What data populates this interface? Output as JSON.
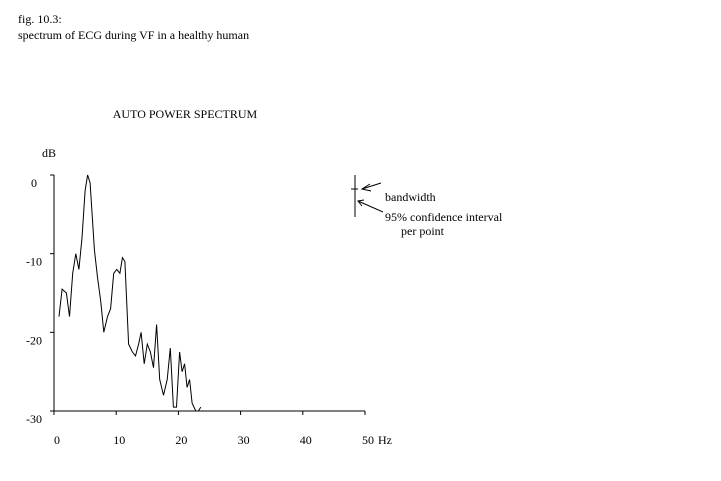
{
  "figure": {
    "label": "fig. 10.3:",
    "caption": "spectrum of ECG during VF in a healthy human"
  },
  "chart_data": {
    "type": "line",
    "title": "AUTO POWER SPECTRUM",
    "xlabel": "",
    "ylabel": "dB",
    "x_unit": "Hz",
    "xlim": [
      0,
      50
    ],
    "ylim": [
      -30,
      0
    ],
    "x_ticks": [
      0,
      10,
      20,
      30,
      40,
      50
    ],
    "x_tick_labels": [
      "0",
      "10",
      "20",
      "30",
      "40",
      "50"
    ],
    "y_ticks": [
      0,
      -10,
      -20,
      -30
    ],
    "y_tick_labels": [
      "0",
      "-10",
      "-20",
      "-30"
    ],
    "grid": false,
    "legend": "none",
    "color": "#000000",
    "series": [
      {
        "x": [
          0.8,
          1.3,
          2.0,
          2.5,
          3.0,
          3.5,
          4.0,
          4.5,
          5.0,
          5.4,
          5.8,
          6.5,
          7.0,
          7.5,
          8.0,
          8.6,
          9.1,
          9.6,
          10.1,
          10.6,
          11.0,
          11.4,
          12.0,
          12.6,
          13.1,
          13.6,
          14.0,
          14.5,
          15.0,
          15.5,
          16.0,
          16.5,
          17.0,
          17.6,
          18.2,
          18.7,
          19.2,
          19.7,
          20.2,
          20.6,
          21.0,
          21.4,
          21.8,
          22.2,
          22.8,
          23.2,
          23.6
        ],
        "y": [
          -18,
          -14.5,
          -15,
          -18,
          -12.5,
          -10,
          -12,
          -8,
          -2,
          0,
          -1,
          -9.5,
          -13,
          -16,
          -20,
          -18,
          -17,
          -12.5,
          -12,
          -12.5,
          -10.5,
          -11,
          -21.5,
          -22.5,
          -23,
          -21.5,
          -20,
          -24,
          -21.5,
          -22.5,
          -24.5,
          -19,
          -26,
          -28,
          -26,
          -22,
          -29.5,
          -29.5,
          -22.5,
          -25,
          -24,
          -27,
          -26,
          -29,
          -30,
          -30,
          -29.5
        ]
      }
    ],
    "annotations": {
      "bandwidth": "bandwidth",
      "confidence_line1": "95% confidence interval",
      "confidence_line2": "per point"
    }
  }
}
